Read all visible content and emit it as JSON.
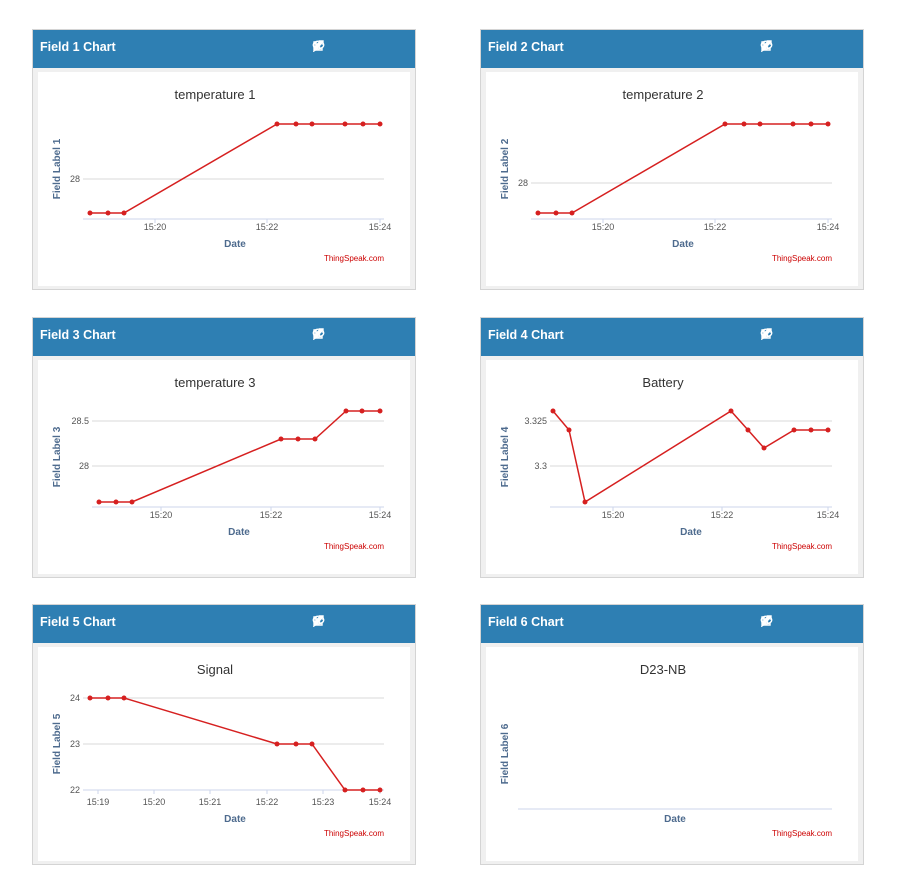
{
  "colors": {
    "header": "#2e7fb3",
    "line": "#d62020",
    "grid": "#d8d8d8",
    "axis_label": "#4e6b8e",
    "credit": "#cc0000"
  },
  "header_icons": [
    "external-link-icon",
    "comment-icon",
    "pencil-icon",
    "close-icon"
  ],
  "widgets": [
    {
      "header_title": "Field 1 Chart"
    },
    {
      "header_title": "Field 2 Chart"
    },
    {
      "header_title": "Field 3 Chart"
    },
    {
      "header_title": "Field 4 Chart"
    },
    {
      "header_title": "Field 5 Chart"
    },
    {
      "header_title": "Field 6 Chart"
    }
  ],
  "chart_data": [
    {
      "type": "line",
      "title": "temperature 1",
      "xlabel": "Date",
      "ylabel": "Field Label 1",
      "credit": "ThingSpeak.com",
      "x_ticks": [
        "15:20",
        "15:22",
        "15:24"
      ],
      "y_ticks": [
        "28"
      ],
      "ylim": [
        27.6,
        28.7
      ],
      "x": [
        "15:19:05",
        "15:19:25",
        "15:19:40",
        "15:22:15",
        "15:22:35",
        "15:22:50",
        "15:23:25",
        "15:23:45",
        "15:24:00"
      ],
      "series": [
        {
          "values": [
            27.7,
            27.7,
            27.7,
            28.6,
            28.6,
            28.6,
            28.6,
            28.6,
            28.6
          ]
        }
      ],
      "grid": true
    },
    {
      "type": "line",
      "title": "temperature 2",
      "xlabel": "Date",
      "ylabel": "Field Label 2",
      "credit": "ThingSpeak.com",
      "x_ticks": [
        "15:20",
        "15:22",
        "15:24"
      ],
      "y_ticks": [
        "28"
      ],
      "ylim": [
        27.6,
        28.7
      ],
      "x": [
        "15:19:05",
        "15:19:25",
        "15:19:40",
        "15:22:15",
        "15:22:35",
        "15:22:50",
        "15:23:25",
        "15:23:45",
        "15:24:00"
      ],
      "series": [
        {
          "values": [
            27.7,
            27.7,
            27.7,
            28.6,
            28.6,
            28.6,
            28.6,
            28.6,
            28.6
          ]
        }
      ],
      "grid": true
    },
    {
      "type": "line",
      "title": "temperature 3",
      "xlabel": "Date",
      "ylabel": "Field Label 3",
      "credit": "ThingSpeak.com",
      "x_ticks": [
        "15:20",
        "15:22",
        "15:24"
      ],
      "y_ticks": [
        "28.5",
        "28"
      ],
      "ylim": [
        27.5,
        28.8
      ],
      "x": [
        "15:19:15",
        "15:19:35",
        "15:19:50",
        "15:22:15",
        "15:22:35",
        "15:22:50",
        "15:23:25",
        "15:23:45",
        "15:24:00"
      ],
      "series": [
        {
          "values": [
            27.6,
            27.6,
            27.6,
            28.3,
            28.3,
            28.3,
            28.6,
            28.6,
            28.6
          ]
        }
      ],
      "grid": true
    },
    {
      "type": "line",
      "title": "Battery",
      "xlabel": "Date",
      "ylabel": "Field Label 4",
      "credit": "ThingSpeak.com",
      "x_ticks": [
        "15:20",
        "15:22",
        "15:24"
      ],
      "y_ticks": [
        "3.325",
        "3.3"
      ],
      "ylim": [
        3.275,
        3.34
      ],
      "x": [
        "15:19:05",
        "15:19:25",
        "15:19:40",
        "15:22:15",
        "15:22:35",
        "15:22:50",
        "15:23:25",
        "15:23:45",
        "15:24:00"
      ],
      "series": [
        {
          "values": [
            3.33,
            3.32,
            3.28,
            3.33,
            3.32,
            3.315,
            3.32,
            3.32,
            3.32
          ]
        }
      ],
      "grid": true
    },
    {
      "type": "line",
      "title": "Signal",
      "xlabel": "Date",
      "ylabel": "Field Label 5",
      "credit": "ThingSpeak.com",
      "x_ticks": [
        "15:19",
        "15:20",
        "15:21",
        "15:22",
        "15:23",
        "15:24"
      ],
      "y_ticks": [
        "24",
        "23",
        "22"
      ],
      "ylim": [
        21.8,
        24.5
      ],
      "x": [
        "15:19:00",
        "15:19:20",
        "15:19:35",
        "15:22:15",
        "15:22:35",
        "15:22:50",
        "15:23:25",
        "15:23:45",
        "15:24:00"
      ],
      "series": [
        {
          "values": [
            24,
            24,
            24,
            23,
            23,
            23,
            22,
            22,
            22
          ]
        }
      ],
      "grid": true
    },
    {
      "type": "line",
      "title": "D23-NB",
      "xlabel": "Date",
      "ylabel": "Field Label 6",
      "credit": "ThingSpeak.com",
      "x_ticks": [],
      "y_ticks": [],
      "x": [],
      "series": [],
      "grid": false
    }
  ]
}
